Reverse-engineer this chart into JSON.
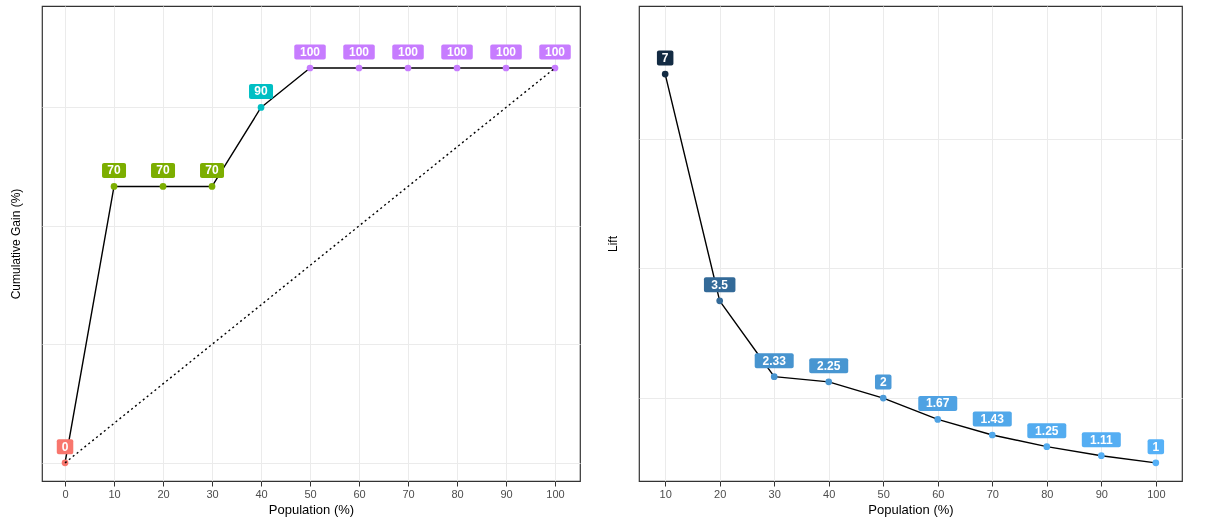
{
  "chart_data": [
    {
      "type": "line",
      "x": [
        0,
        10,
        20,
        30,
        40,
        50,
        60,
        70,
        80,
        90,
        100
      ],
      "xlabel": "Population (%)",
      "ylabel": "Cumulative Gain (%)",
      "xlim": [
        -4.7,
        105.1
      ],
      "xticks": [
        0,
        10,
        20,
        30,
        40,
        50,
        60,
        70,
        80,
        90,
        100
      ],
      "ylim": [
        -4.6,
        115.7
      ],
      "yticks": [
        {
          "value": 0,
          "label": null
        },
        {
          "value": 30,
          "label": null
        },
        {
          "value": 60,
          "label": null
        },
        {
          "value": 90,
          "label": null
        }
      ],
      "tick_labels": "x",
      "grid": true,
      "data_labels": true,
      "marker": "circle",
      "line_style": "solid",
      "series": [
        {
          "color": "#000000",
          "values": [
            0,
            70,
            70,
            70,
            90,
            100,
            100,
            100,
            100,
            100,
            100
          ],
          "colors": [
            "#f8766d",
            "#7cae00",
            "#7cae00",
            "#7cae00",
            "#00bfc4",
            "#c77cff",
            "#c77cff",
            "#c77cff",
            "#c77cff",
            "#c77cff",
            "#c77cff"
          ]
        },
        {
          "type": "line",
          "x": [
            0,
            100
          ],
          "values": [
            0,
            100
          ],
          "value_labels": [
            null,
            null
          ],
          "color": "#000000",
          "line_style": "dotted",
          "marker": "none"
        }
      ]
    },
    {
      "type": "line",
      "x": [
        10,
        20,
        30,
        40,
        50,
        60,
        70,
        80,
        90,
        100
      ],
      "xlabel": "Population (%)",
      "ylabel": "Lift",
      "xlim": [
        5.2,
        104.8
      ],
      "xticks": [
        10,
        20,
        30,
        40,
        50,
        60,
        70,
        80,
        90,
        100
      ],
      "ylim": [
        0.72,
        8.05
      ],
      "yticks": [
        {
          "value": 2,
          "label": null
        },
        {
          "value": 4,
          "label": null
        },
        {
          "value": 6,
          "label": null
        }
      ],
      "tick_labels": "x",
      "grid": true,
      "data_labels": true,
      "marker": "circle",
      "line_style": "solid",
      "series": [
        {
          "color": "#000000",
          "values": [
            7,
            3.5,
            2.33,
            2.25,
            2,
            1.67,
            1.43,
            1.25,
            1.11,
            1
          ],
          "colors": [
            "#132b43",
            "#336a98",
            "#4794cf",
            "#4896d1",
            "#4b9ad8",
            "#4fa2e3",
            "#51a8ea",
            "#53acf0",
            "#55aef3",
            "#56b1f7"
          ]
        }
      ]
    }
  ]
}
